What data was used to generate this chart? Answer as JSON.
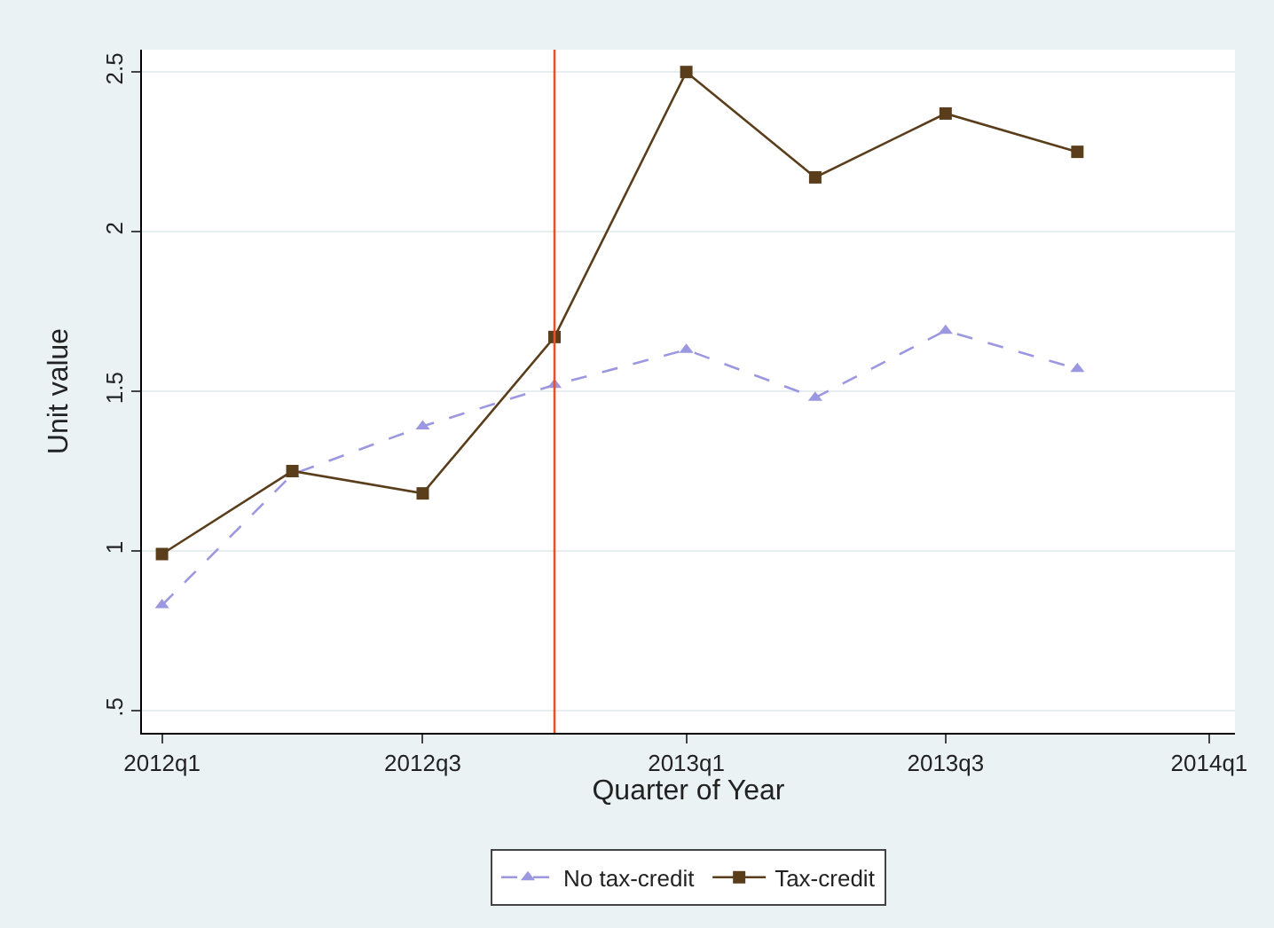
{
  "chart_data": {
    "type": "line",
    "xlabel": "Quarter of Year",
    "ylabel": "Unit value",
    "x": [
      "2012-01-01",
      "2012-04-01",
      "2012-07-01",
      "2012-10-01",
      "2013-01-01",
      "2013-04-01",
      "2013-07-01",
      "2013-10-01"
    ],
    "xlim": [
      "2011-12-18",
      "2014-01-19"
    ],
    "xticks": [
      {
        "value": "2012-01-01",
        "label": "2012q1"
      },
      {
        "value": "2012-07-01",
        "label": "2012q3"
      },
      {
        "value": "2013-01-01",
        "label": "2013q1"
      },
      {
        "value": "2013-07-01",
        "label": "2013q3"
      },
      {
        "value": "2014-01-01",
        "label": "2014q1"
      }
    ],
    "ylim": [
      0.43,
      2.57
    ],
    "yticks": [
      {
        "value": 0.5,
        "label": ".5"
      },
      1,
      1.5,
      2,
      2.5
    ],
    "grid": "y",
    "legend": "bottom",
    "series": [
      {
        "name": "No tax-credit",
        "color": "#9b97e0",
        "marker": "triangle",
        "line_style": "dashed",
        "values": [
          0.83,
          1.24,
          1.39,
          1.52,
          1.63,
          1.48,
          1.69,
          1.57
        ]
      },
      {
        "name": "Tax-credit",
        "color": "#5a3e1b",
        "marker": "square",
        "line_style": "solid",
        "values": [
          0.99,
          1.25,
          1.18,
          1.67,
          2.5,
          2.17,
          2.37,
          2.25
        ]
      }
    ],
    "ref_lines": [
      {
        "axis": "x",
        "value": "2012-10-01",
        "color": "#e8502a"
      }
    ]
  }
}
